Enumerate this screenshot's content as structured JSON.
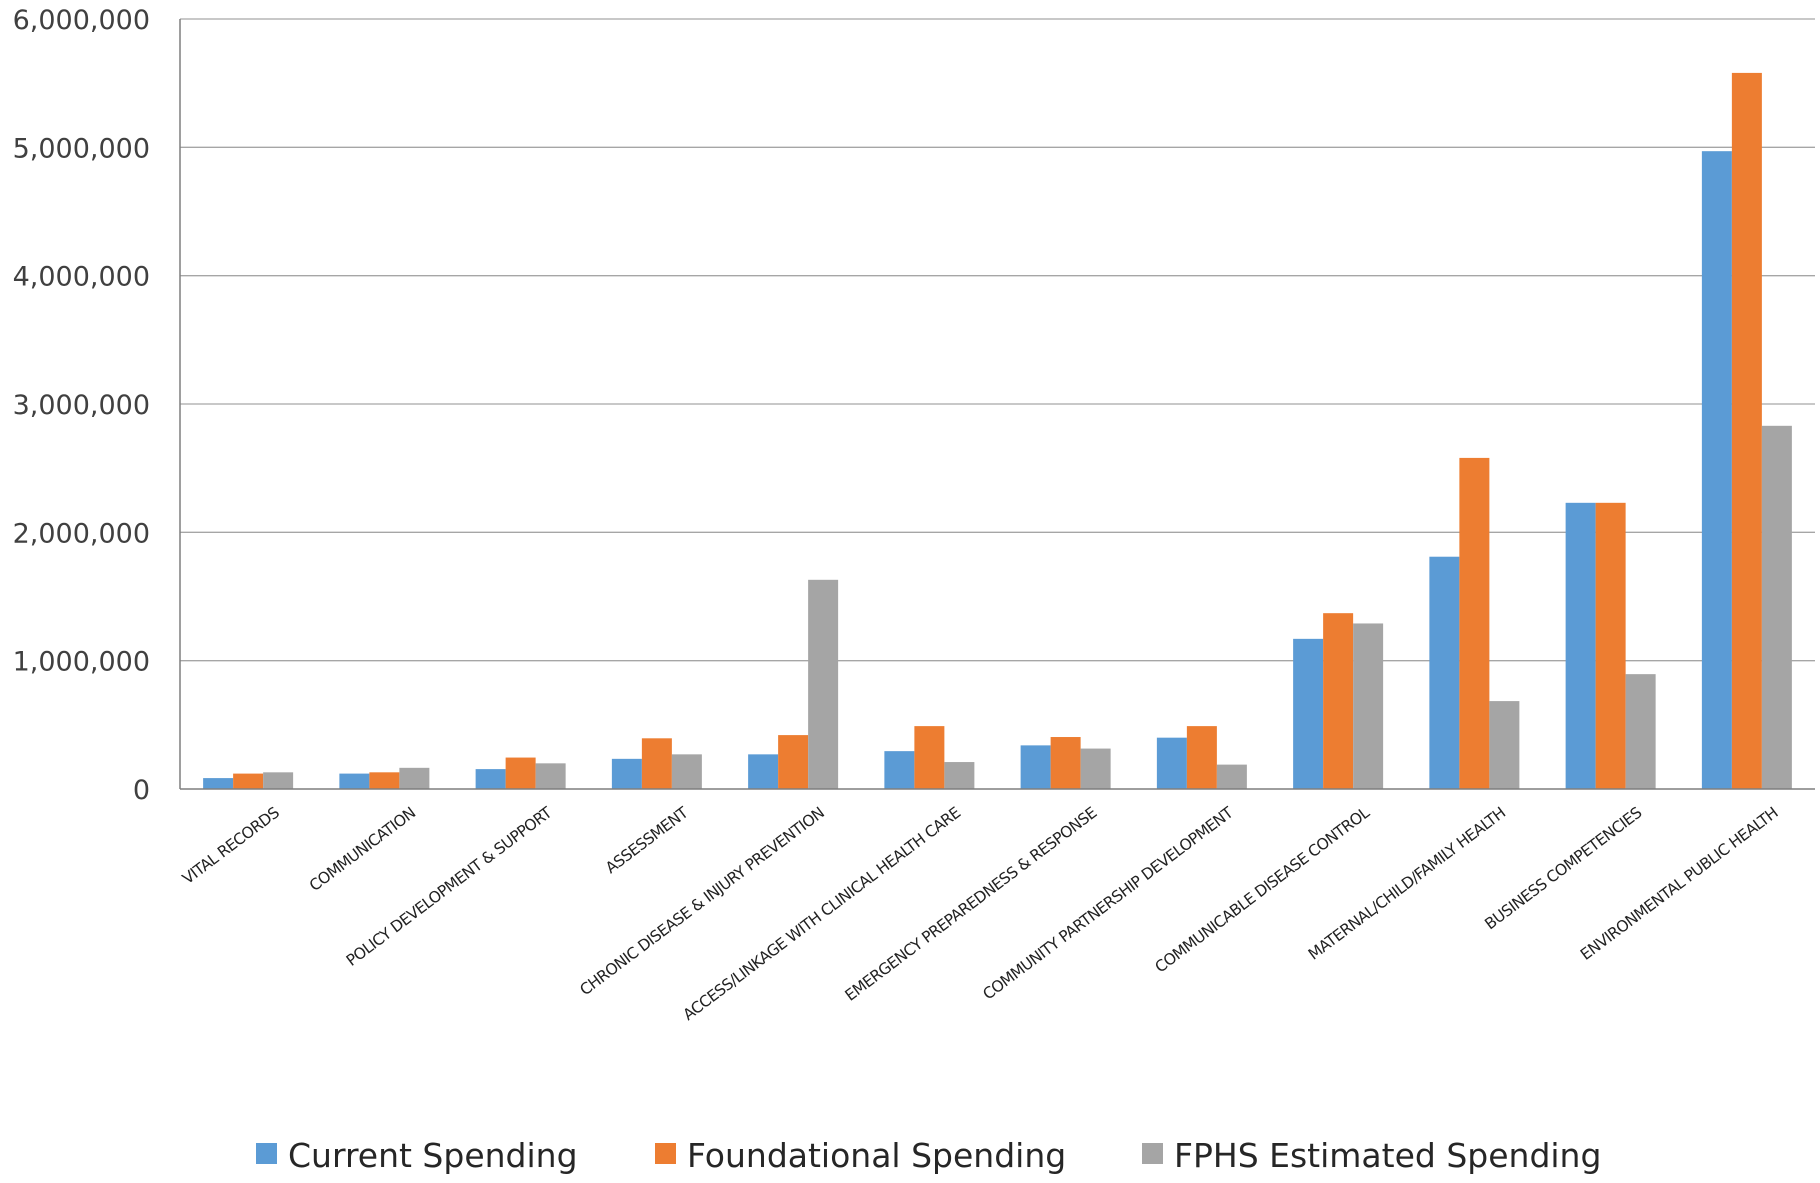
{
  "chart_data": {
    "type": "bar",
    "title": "",
    "xlabel": "",
    "ylabel": "",
    "ylim": [
      0,
      6000000
    ],
    "yticks": [
      0,
      1000000,
      2000000,
      3000000,
      4000000,
      5000000,
      6000000
    ],
    "ytick_labels": [
      "0",
      "1,000,000",
      "2,000,000",
      "3,000,000",
      "4,000,000",
      "5,000,000",
      "6,000,000"
    ],
    "grid": "horizontal",
    "legend_position": "bottom",
    "categories": [
      "VITAL RECORDS",
      "COMMUNICATION",
      "POLICY DEVELOPMENT & SUPPORT",
      "ASSESSMENT",
      "CHRONIC DISEASE & INJURY PREVENTION",
      "ACCESS/LINKAGE WITH CLINICAL HEALTH CARE",
      "EMERGENCY PREPAREDNESS & RESPONSE",
      "COMMUNITY PARTNERSHIP DEVELOPMENT",
      "COMMUNICABLE DISEASE CONTROL",
      "MATERNAL/CHILD/FAMILY HEALTH",
      "BUSINESS COMPETENCIES",
      "ENVIRONMENTAL PUBLIC HEALTH"
    ],
    "series": [
      {
        "name": "Current Spending",
        "color": "#5b9bd5",
        "values": [
          85000,
          120000,
          155000,
          235000,
          270000,
          295000,
          340000,
          400000,
          1170000,
          1810000,
          2230000,
          4970000
        ]
      },
      {
        "name": "Foundational Spending",
        "color": "#ed7d31",
        "values": [
          120000,
          130000,
          245000,
          395000,
          420000,
          490000,
          405000,
          490000,
          1370000,
          2580000,
          2230000,
          5580000
        ]
      },
      {
        "name": "FPHS Estimated Spending",
        "color": "#a5a5a5",
        "values": [
          130000,
          165000,
          200000,
          270000,
          1630000,
          210000,
          315000,
          190000,
          1290000,
          685000,
          895000,
          2830000
        ]
      }
    ]
  }
}
